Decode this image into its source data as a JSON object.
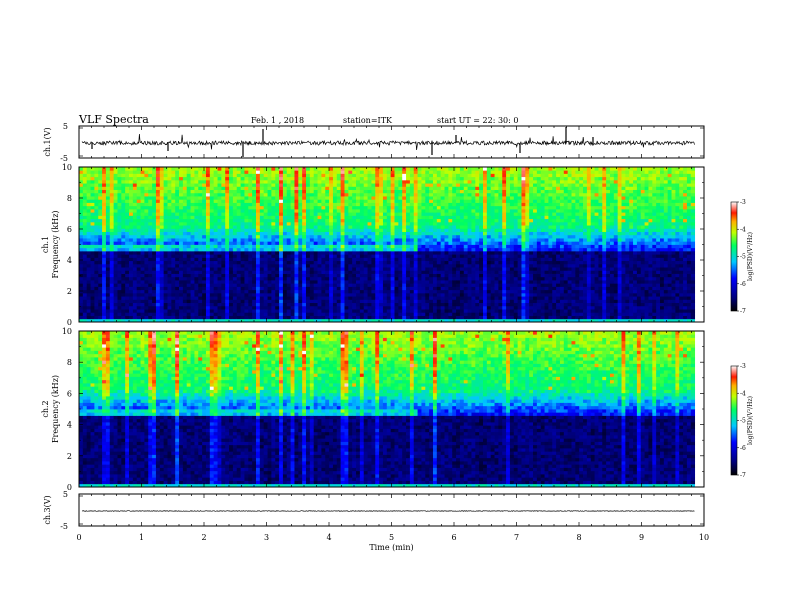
{
  "header": {
    "title": "VLF Spectra",
    "date": "Feb. 1 , 2018",
    "station": "station=ITK",
    "start": "start UT = 22: 30: 0"
  },
  "chart_data": [
    {
      "type": "line",
      "panel": "ch1-waveform",
      "ylabel": "ch.1(V)",
      "yticks": [
        "5",
        "-5"
      ],
      "ylim": [
        -5,
        5
      ],
      "xlim": [
        0,
        10
      ]
    },
    {
      "type": "heatmap",
      "panel": "ch1-spectrogram",
      "ylabel_line1": "ch.1",
      "ylabel_line2": "Frequency (kHz)",
      "xlim": [
        0,
        10
      ],
      "ylim": [
        0,
        10
      ],
      "yticks": [
        "0",
        "2",
        "4",
        "6",
        "8",
        "10"
      ],
      "colorbar": {
        "label": "log(PSD)(V²/Hz)",
        "ticks": [
          "-3",
          "-4",
          "-5",
          "-6",
          "-7"
        ],
        "range": [
          -7,
          -3
        ]
      }
    },
    {
      "type": "heatmap",
      "panel": "ch2-spectrogram",
      "ylabel_line1": "ch.2",
      "ylabel_line2": "Frequency (kHz)",
      "xlim": [
        0,
        10
      ],
      "ylim": [
        0,
        10
      ],
      "yticks": [
        "0",
        "2",
        "4",
        "6",
        "8",
        "10"
      ],
      "colorbar": {
        "label": "log(PSD)(V²/Hz)",
        "ticks": [
          "-3",
          "-4",
          "-5",
          "-6",
          "-7"
        ],
        "range": [
          -7,
          -3
        ]
      }
    },
    {
      "type": "line",
      "panel": "ch3-waveform",
      "ylabel": "ch.3(V)",
      "yticks": [
        "5",
        "-5"
      ],
      "ylim": [
        -5,
        5
      ],
      "xlim": [
        0,
        10
      ],
      "xticks": [
        "0",
        "1",
        "2",
        "3",
        "4",
        "5",
        "6",
        "7",
        "8",
        "9",
        "10"
      ],
      "xlabel": "Time (min)"
    }
  ],
  "colors": {
    "bg_low": "#000010",
    "mid": "#0000ff",
    "high": "#00ff60",
    "peak": "#ff2000"
  }
}
